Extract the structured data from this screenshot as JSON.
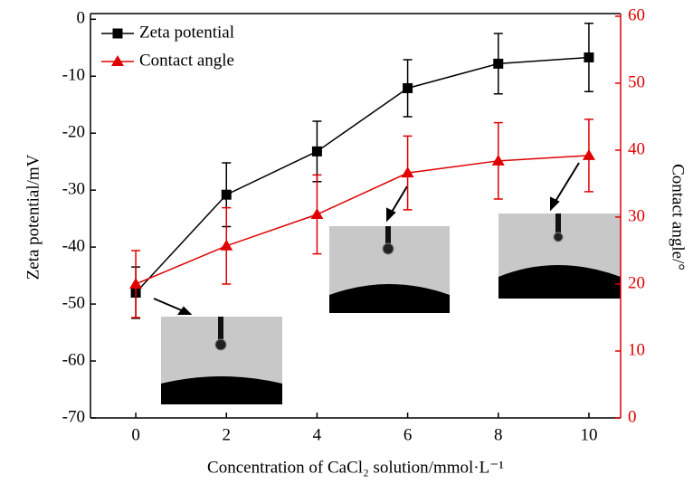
{
  "chart_data": {
    "type": "line",
    "x": [
      0,
      2,
      4,
      6,
      8,
      10
    ],
    "xlim": [
      -1,
      10.7
    ],
    "xticks": [
      0,
      2,
      4,
      6,
      8,
      10
    ],
    "xlabel": "Concentration of CaCl₂ solution/mmol·L⁻¹",
    "ylabel": "Zeta potential/mV",
    "y2label": "Contact angle/°",
    "ylim": [
      -70,
      1
    ],
    "yticks": [
      0,
      -10,
      -20,
      -30,
      -40,
      -50,
      -60,
      -70
    ],
    "y2lim": [
      0,
      60.4
    ],
    "y2ticks": [
      0,
      10,
      20,
      30,
      40,
      50,
      60
    ],
    "y2color": "#e00000",
    "legend": "upper left",
    "series": [
      {
        "name": "Zeta potential",
        "color": "#000000",
        "marker": "square",
        "values": [
          -48,
          -30.8,
          -23.2,
          -12.1,
          -7.8,
          -6.7
        ],
        "errors": [
          4.5,
          5.6,
          5.3,
          5,
          5.3,
          6
        ]
      },
      {
        "name": "Contact angle",
        "color": "#e00000",
        "marker": "triangle",
        "axis": "y2",
        "values": [
          20,
          25.7,
          30.4,
          36.6,
          38.4,
          39.2
        ],
        "errors": [
          5,
          5.7,
          5.9,
          5.5,
          5.7,
          5.4
        ]
      }
    ]
  }
}
